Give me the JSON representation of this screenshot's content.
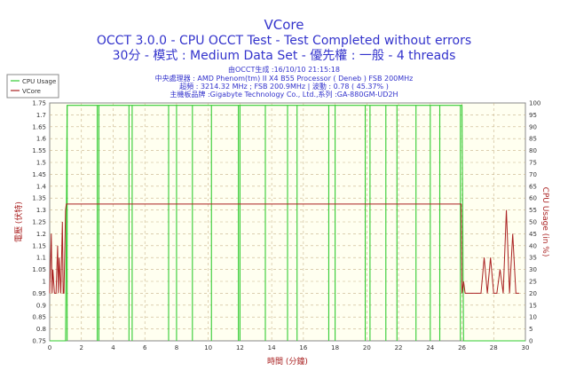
{
  "chart_data": {
    "type": "line",
    "title": "VCore",
    "subtitle": "OCCT 3.0.0 - CPU OCCT Test - Test Completed without errors",
    "subtitle2": "30分 - 模式 : Medium Data Set - 優先權 : 一般 - 4 threads",
    "info_lines": [
      "由OCCT生成 :16/10/10 21:15:18",
      "中央處理器 : AMD Phenom(tm) II X4 B55 Processor ( Deneb ) FSB 200MHz",
      "超頻 : 3214.32 MHz ; FSB 200.9MHz | 波動 : 0.78 ( 45.37% )",
      "主機板品牌 :Gigabyte Technology Co., Ltd.,系列 :GA-880GM-UD2H"
    ],
    "xlabel": "時間 (分鐘)",
    "ylabel_left": "電壓 (伏特)",
    "ylabel_right": "CPU Usage (in %)",
    "xlim": [
      0,
      30
    ],
    "ylim_left": [
      0.75,
      1.75
    ],
    "ylim_right": [
      0,
      100
    ],
    "x_ticks": [
      "0",
      "2",
      "4",
      "6",
      "8",
      "10",
      "12",
      "14",
      "16",
      "18",
      "20",
      "22",
      "24",
      "26",
      "28",
      "30"
    ],
    "y_left_ticks": [
      "0.75",
      "0.8",
      "0.85",
      "0.9",
      "0.95",
      "1",
      "1.05",
      "1.1",
      "1.15",
      "1.2",
      "1.25",
      "1.3",
      "1.35",
      "1.4",
      "1.45",
      "1.5",
      "1.55",
      "1.6",
      "1.65",
      "1.7",
      "1.75"
    ],
    "y_right_ticks": [
      "0",
      "5",
      "10",
      "15",
      "20",
      "25",
      "30",
      "35",
      "40",
      "45",
      "50",
      "55",
      "60",
      "65",
      "70",
      "75",
      "80",
      "85",
      "90",
      "95",
      "100"
    ],
    "grid": true,
    "legend_position": "top-left",
    "colors": {
      "cpu_usage": "#33cc33",
      "vcore": "#aa2222",
      "title": "#3333cc",
      "info": "#3333cc",
      "plot_bg": "#fffff0",
      "grid": "#c8b38a"
    },
    "series": [
      {
        "name": "CPU Usage",
        "axis": "right",
        "x": [
          0,
          1,
          1.1,
          26,
          26.1,
          30
        ],
        "y": [
          0,
          0,
          99,
          99,
          0,
          0
        ],
        "dips_x": [
          1.1,
          3,
          3.1,
          5,
          5.2,
          7.5,
          8,
          9,
          10.2,
          11.9,
          12,
          13.6,
          15,
          15.6,
          17.6,
          18,
          19.9,
          20.2,
          21.2,
          21.9,
          23.1,
          24,
          24.6,
          25.9
        ]
      },
      {
        "name": "VCore",
        "axis": "left",
        "x": [
          0,
          0.1,
          0.15,
          0.2,
          0.3,
          0.4,
          0.5,
          0.55,
          0.6,
          0.7,
          0.8,
          0.85,
          0.9,
          1.0,
          1.05,
          25.95,
          26,
          26.1,
          26.2,
          26.4,
          26.6,
          26.8,
          27.0,
          27.2,
          27.4,
          27.6,
          27.8,
          28.0,
          28.2,
          28.4,
          28.6,
          28.8,
          29.0,
          29.2,
          29.4,
          29.6
        ],
        "y": [
          0.95,
          1.2,
          0.95,
          1.05,
          0.95,
          0.95,
          1.15,
          0.95,
          1.1,
          0.95,
          1.25,
          0.95,
          0.95,
          1.3,
          1.325,
          1.325,
          0.95,
          1.0,
          0.95,
          0.95,
          0.95,
          0.95,
          0.95,
          0.95,
          1.1,
          0.95,
          1.1,
          0.95,
          0.95,
          1.05,
          0.95,
          1.3,
          0.95,
          1.2,
          0.95,
          0.95
        ]
      }
    ]
  }
}
